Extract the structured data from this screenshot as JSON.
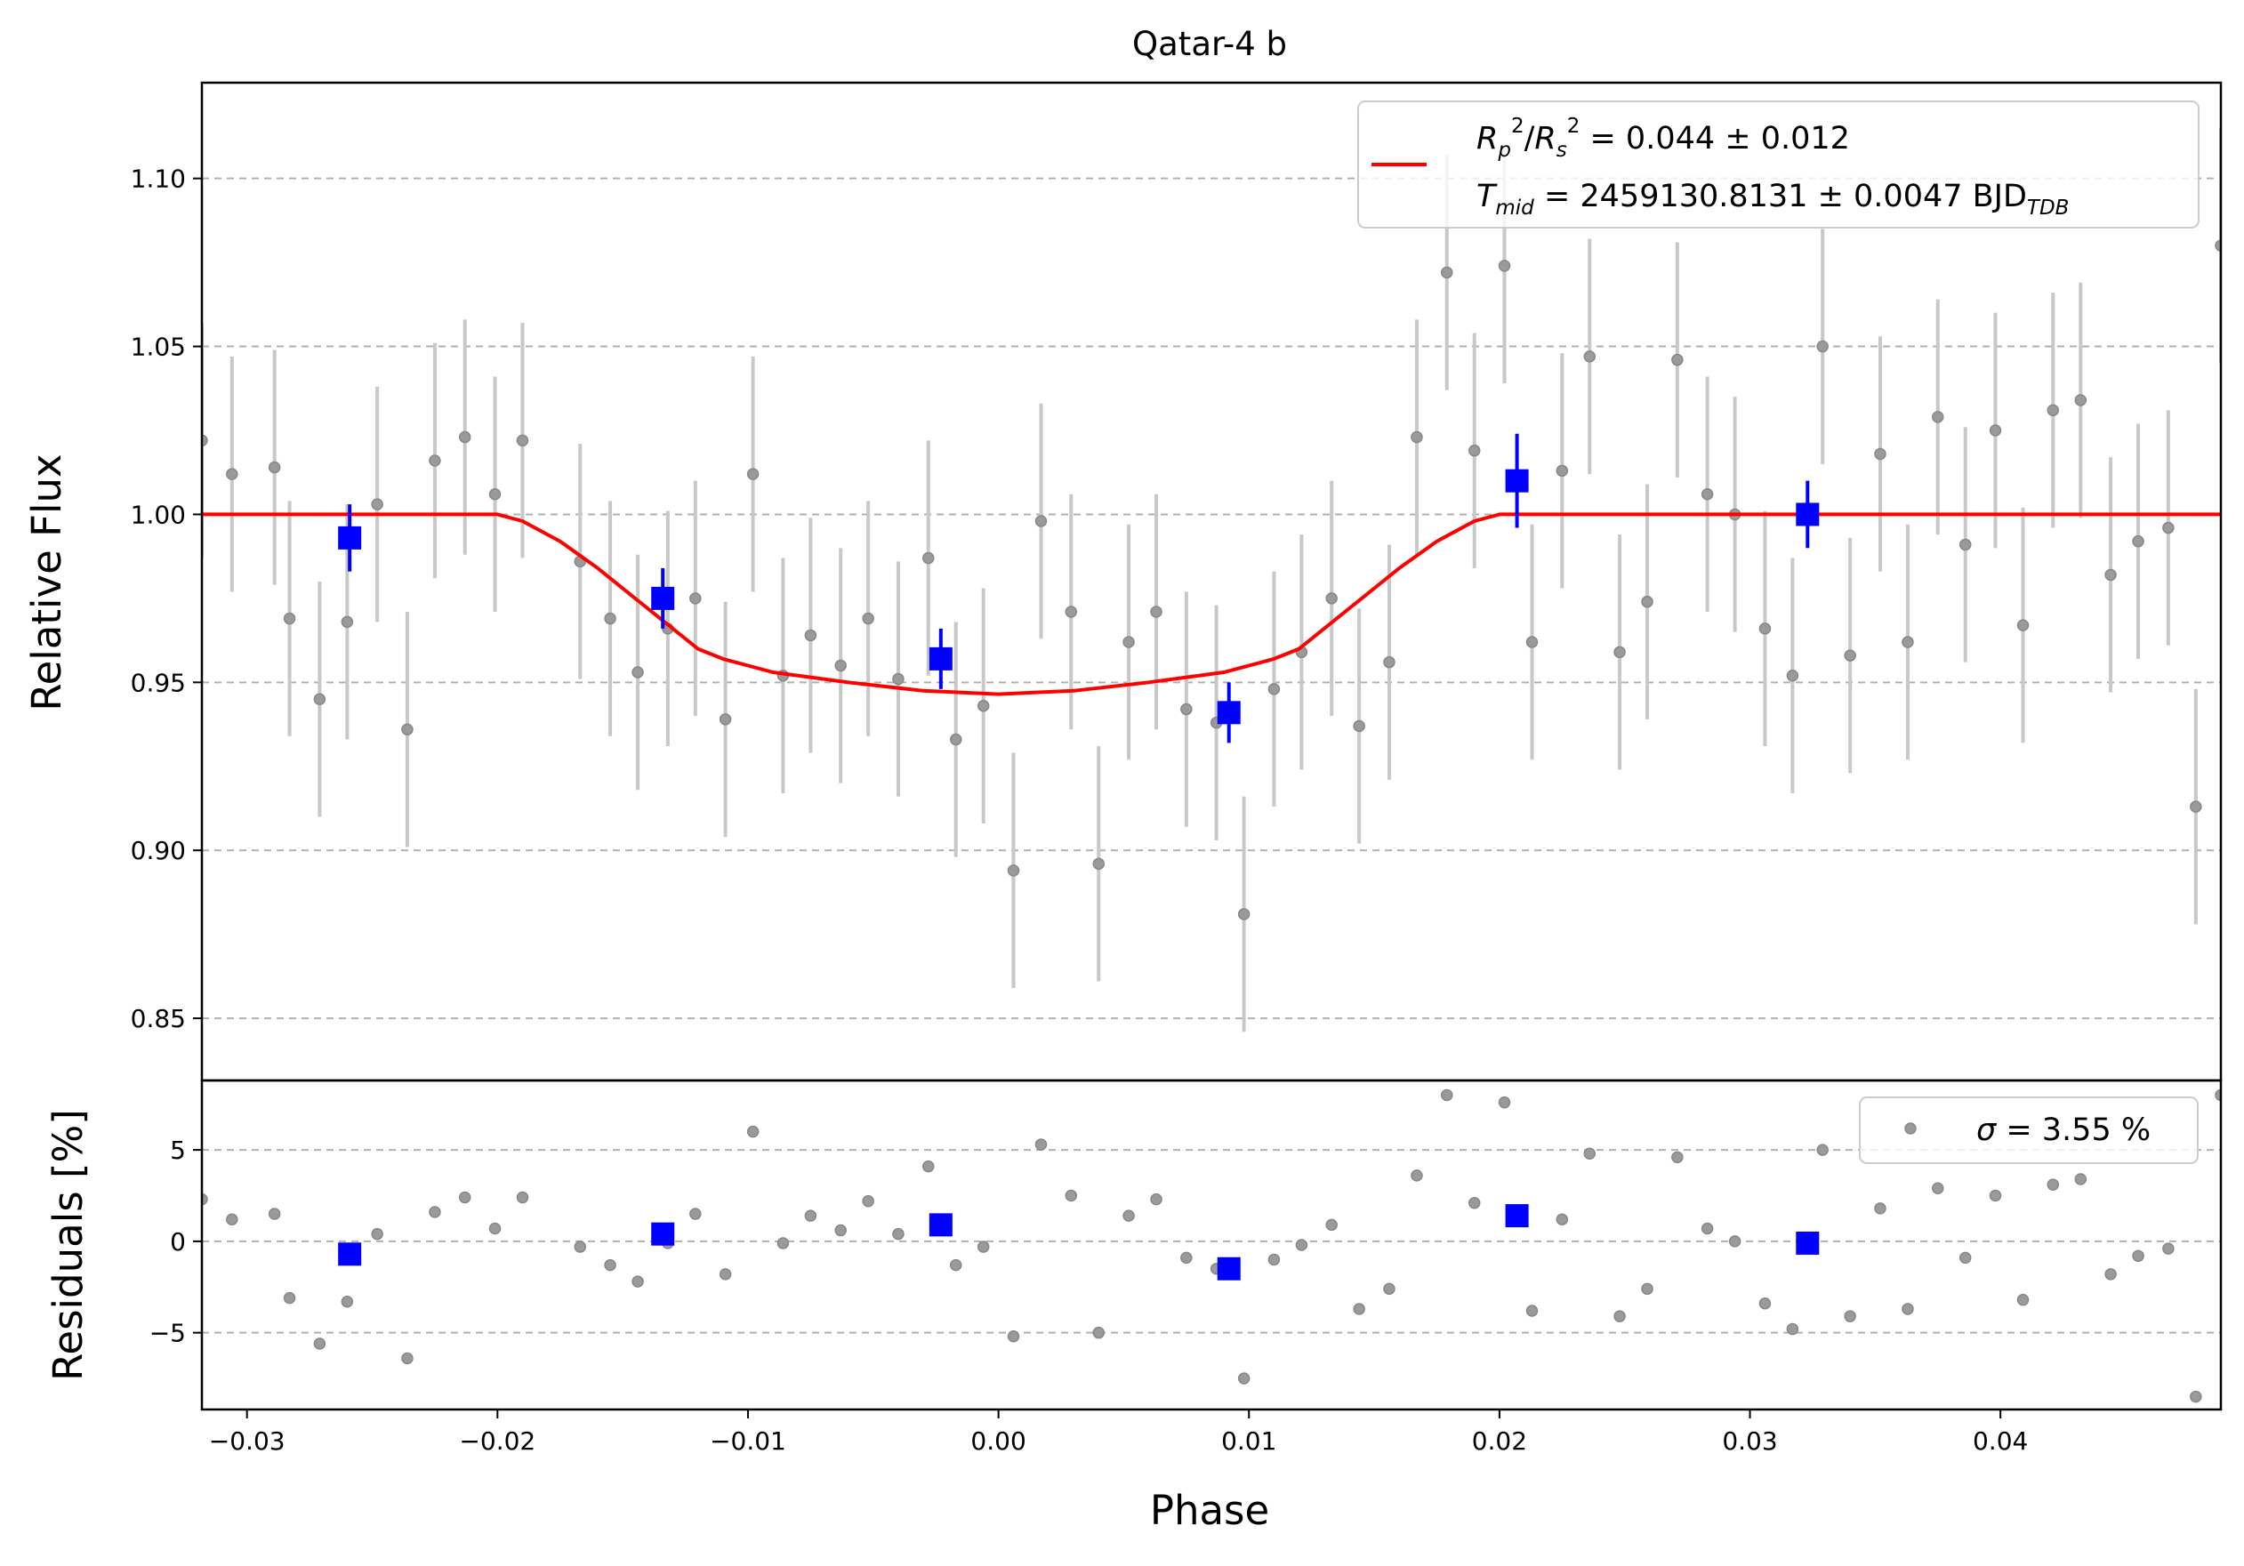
{
  "chart_data": {
    "type": "scatter",
    "title": "Qatar-4 b",
    "xlabel": "Phase",
    "xlim": [
      -0.0318,
      0.0488
    ],
    "x_ticks": [
      {
        "v": -0.03,
        "label": "−0.03"
      },
      {
        "v": -0.02,
        "label": "−0.02"
      },
      {
        "v": -0.01,
        "label": "−0.01"
      },
      {
        "v": 0.0,
        "label": "0.00"
      },
      {
        "v": 0.01,
        "label": "0.01"
      },
      {
        "v": 0.02,
        "label": "0.02"
      },
      {
        "v": 0.03,
        "label": "0.03"
      },
      {
        "v": 0.04,
        "label": "0.04"
      }
    ],
    "grid": true,
    "top_panel": {
      "ylabel": "Relative Flux",
      "ylim": [
        0.8315,
        1.1285
      ],
      "y_ticks": [
        {
          "v": 0.85,
          "label": "0.85"
        },
        {
          "v": 0.9,
          "label": "0.90"
        },
        {
          "v": 0.95,
          "label": "0.95"
        },
        {
          "v": 1.0,
          "label": "1.00"
        },
        {
          "v": 1.05,
          "label": "1.05"
        },
        {
          "v": 1.1,
          "label": "1.10"
        }
      ],
      "data_points": {
        "error": 0.035,
        "points": [
          [
            -0.0318,
            1.022
          ],
          [
            -0.0306,
            1.012
          ],
          [
            -0.0289,
            1.014
          ],
          [
            -0.0283,
            0.969
          ],
          [
            -0.0271,
            0.945
          ],
          [
            -0.026,
            0.968
          ],
          [
            -0.0248,
            1.003
          ],
          [
            -0.0236,
            0.936
          ],
          [
            -0.0225,
            1.016
          ],
          [
            -0.0213,
            1.023
          ],
          [
            -0.0201,
            1.006
          ],
          [
            -0.019,
            1.022
          ],
          [
            -0.0167,
            0.986
          ],
          [
            -0.0155,
            0.969
          ],
          [
            -0.0144,
            0.953
          ],
          [
            -0.0132,
            0.966
          ],
          [
            -0.0121,
            0.975
          ],
          [
            -0.0109,
            0.939
          ],
          [
            -0.0098,
            1.012
          ],
          [
            -0.0086,
            0.952
          ],
          [
            -0.0075,
            0.964
          ],
          [
            -0.0063,
            0.955
          ],
          [
            -0.0052,
            0.969
          ],
          [
            -0.004,
            0.951
          ],
          [
            -0.0028,
            0.987
          ],
          [
            -0.0017,
            0.933
          ],
          [
            -0.0006,
            0.943
          ],
          [
            0.0006,
            0.894
          ],
          [
            0.0017,
            0.998
          ],
          [
            0.0029,
            0.971
          ],
          [
            0.004,
            0.896
          ],
          [
            0.0052,
            0.962
          ],
          [
            0.0063,
            0.971
          ],
          [
            0.0075,
            0.942
          ],
          [
            0.0087,
            0.938
          ],
          [
            0.0098,
            0.881
          ],
          [
            0.011,
            0.948
          ],
          [
            0.0121,
            0.959
          ],
          [
            0.0133,
            0.975
          ],
          [
            0.0144,
            0.937
          ],
          [
            0.0156,
            0.956
          ],
          [
            0.0167,
            1.023
          ],
          [
            0.0179,
            1.072
          ],
          [
            0.019,
            1.019
          ],
          [
            0.0202,
            1.074
          ],
          [
            0.0213,
            0.962
          ],
          [
            0.0225,
            1.013
          ],
          [
            0.0236,
            1.047
          ],
          [
            0.0248,
            0.959
          ],
          [
            0.0259,
            0.974
          ],
          [
            0.0271,
            1.046
          ],
          [
            0.0283,
            1.006
          ],
          [
            0.0294,
            1.0
          ],
          [
            0.0306,
            0.966
          ],
          [
            0.0317,
            0.952
          ],
          [
            0.0329,
            1.05
          ],
          [
            0.034,
            0.958
          ],
          [
            0.0352,
            1.018
          ],
          [
            0.0363,
            0.962
          ],
          [
            0.0375,
            1.029
          ],
          [
            0.0386,
            0.991
          ],
          [
            0.0398,
            1.025
          ],
          [
            0.0409,
            0.967
          ],
          [
            0.0421,
            1.031
          ],
          [
            0.0432,
            1.034
          ],
          [
            0.0444,
            0.982
          ],
          [
            0.0455,
            0.992
          ],
          [
            0.0467,
            0.996
          ],
          [
            0.0478,
            0.913
          ],
          [
            0.0488,
            1.08
          ]
        ]
      },
      "binned": {
        "color": "#0000ff",
        "points": [
          [
            -0.0259,
            0.993,
            0.01
          ],
          [
            -0.0134,
            0.975,
            0.009
          ],
          [
            -0.0023,
            0.957,
            0.009
          ],
          [
            0.0092,
            0.941,
            0.009
          ],
          [
            0.0207,
            1.01,
            0.014
          ],
          [
            0.0323,
            1.0,
            0.01
          ]
        ]
      },
      "model": {
        "color": "#ff0000",
        "x": [
          -0.0318,
          -0.02,
          -0.019,
          -0.0175,
          -0.016,
          -0.0145,
          -0.013,
          -0.012,
          -0.011,
          -0.009,
          -0.006,
          -0.003,
          0.0,
          0.003,
          0.006,
          0.009,
          0.011,
          0.012,
          0.013,
          0.0145,
          0.016,
          0.0175,
          0.019,
          0.02,
          0.0488
        ],
        "y": [
          1.0,
          1.0,
          0.998,
          0.992,
          0.984,
          0.975,
          0.966,
          0.96,
          0.957,
          0.953,
          0.95,
          0.9475,
          0.9465,
          0.9475,
          0.95,
          0.953,
          0.957,
          0.96,
          0.966,
          0.975,
          0.984,
          0.992,
          0.998,
          1.0,
          1.0
        ]
      },
      "legend": {
        "placement": "upper-right",
        "rp_rs": "= 0.044 ± 0.012",
        "tmid": "= 2459130.8131 ± 0.0047 BJD"
      }
    },
    "bottom_panel": {
      "ylabel": "Residuals [%]",
      "ylim": [
        -9.2,
        8.8
      ],
      "y_ticks": [
        {
          "v": -5,
          "label": "−5"
        },
        {
          "v": 0,
          "label": "0"
        },
        {
          "v": 5,
          "label": "5"
        }
      ],
      "residuals": [
        2.3,
        1.2,
        1.5,
        -3.1,
        -5.6,
        -3.3,
        0.4,
        -6.4,
        1.6,
        2.4,
        0.7,
        2.4,
        -0.3,
        -1.3,
        -2.2,
        -0.1,
        1.5,
        -1.8,
        6.0,
        -0.1,
        1.4,
        0.6,
        2.2,
        0.4,
        4.1,
        -1.3,
        -0.3,
        -5.2,
        5.3,
        2.5,
        -5.0,
        1.4,
        2.3,
        -0.9,
        -1.5,
        -7.5,
        -1.0,
        -0.2,
        0.9,
        -3.7,
        -2.6,
        3.6,
        8.0,
        2.1,
        7.6,
        -3.8,
        1.2,
        4.8,
        -4.1,
        -2.6,
        4.6,
        0.7,
        0.0,
        -3.4,
        -4.8,
        5.0,
        -4.1,
        1.8,
        -3.7,
        2.9,
        -0.9,
        2.5,
        -3.2,
        3.1,
        3.4,
        -1.8,
        -0.8,
        -0.4,
        -8.5,
        8.0
      ],
      "binned": [
        [
          -0.0259,
          -0.7
        ],
        [
          -0.0134,
          0.4
        ],
        [
          -0.0023,
          0.9
        ],
        [
          0.0092,
          -1.5
        ],
        [
          0.0207,
          1.4
        ],
        [
          0.0323,
          -0.1
        ]
      ],
      "legend": {
        "placement": "upper-right",
        "sigma": "= 3.55 %"
      }
    }
  }
}
